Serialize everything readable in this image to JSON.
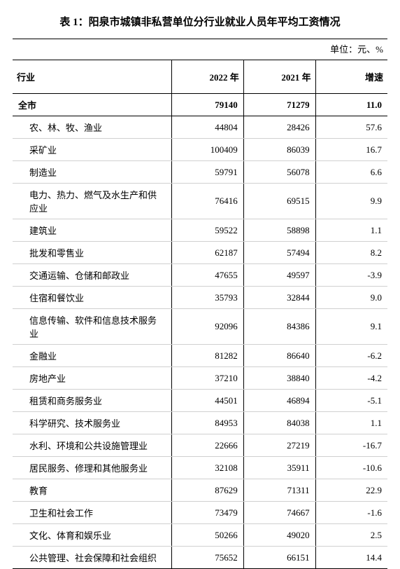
{
  "title": "表 1：阳泉市城镇非私营单位分行业就业人员年平均工资情况",
  "unit": "单位：元、%",
  "columns": {
    "industry": "行业",
    "year2022": "2022 年",
    "year2021": "2021 年",
    "growth": "增速"
  },
  "total": {
    "label": "全市",
    "y2022": "79140",
    "y2021": "71279",
    "growth": "11.0"
  },
  "rows": [
    {
      "label": "农、林、牧、渔业",
      "y2022": "44804",
      "y2021": "28426",
      "growth": "57.6"
    },
    {
      "label": "采矿业",
      "y2022": "100409",
      "y2021": "86039",
      "growth": "16.7"
    },
    {
      "label": "制造业",
      "y2022": "59791",
      "y2021": "56078",
      "growth": "6.6"
    },
    {
      "label": "电力、热力、燃气及水生产和供应业",
      "y2022": "76416",
      "y2021": "69515",
      "growth": "9.9"
    },
    {
      "label": "建筑业",
      "y2022": "59522",
      "y2021": "58898",
      "growth": "1.1"
    },
    {
      "label": "批发和零售业",
      "y2022": "62187",
      "y2021": "57494",
      "growth": "8.2"
    },
    {
      "label": "交通运输、仓储和邮政业",
      "y2022": "47655",
      "y2021": "49597",
      "growth": "-3.9"
    },
    {
      "label": "住宿和餐饮业",
      "y2022": "35793",
      "y2021": "32844",
      "growth": "9.0"
    },
    {
      "label": "信息传输、软件和信息技术服务业",
      "y2022": "92096",
      "y2021": "84386",
      "growth": "9.1"
    },
    {
      "label": "金融业",
      "y2022": "81282",
      "y2021": "86640",
      "growth": "-6.2"
    },
    {
      "label": "房地产业",
      "y2022": "37210",
      "y2021": "38840",
      "growth": "-4.2"
    },
    {
      "label": "租赁和商务服务业",
      "y2022": "44501",
      "y2021": "46894",
      "growth": "-5.1"
    },
    {
      "label": "科学研究、技术服务业",
      "y2022": "84953",
      "y2021": "84038",
      "growth": "1.1"
    },
    {
      "label": "水利、环境和公共设施管理业",
      "y2022": "22666",
      "y2021": "27219",
      "growth": "-16.7"
    },
    {
      "label": "居民服务、修理和其他服务业",
      "y2022": "32108",
      "y2021": "35911",
      "growth": "-10.6"
    },
    {
      "label": "教育",
      "y2022": "87629",
      "y2021": "71311",
      "growth": "22.9"
    },
    {
      "label": "卫生和社会工作",
      "y2022": "73479",
      "y2021": "74667",
      "growth": "-1.6"
    },
    {
      "label": "文化、体育和娱乐业",
      "y2022": "50266",
      "y2021": "49020",
      "growth": "2.5"
    },
    {
      "label": "公共管理、社会保障和社会组织",
      "y2022": "75652",
      "y2021": "66151",
      "growth": "14.4"
    }
  ],
  "style": {
    "title_fontsize": 15,
    "body_fontsize": 13,
    "border_color": "#000000",
    "row_divider_color": "#d0d0d0",
    "background_color": "#ffffff",
    "text_color": "#000000"
  }
}
